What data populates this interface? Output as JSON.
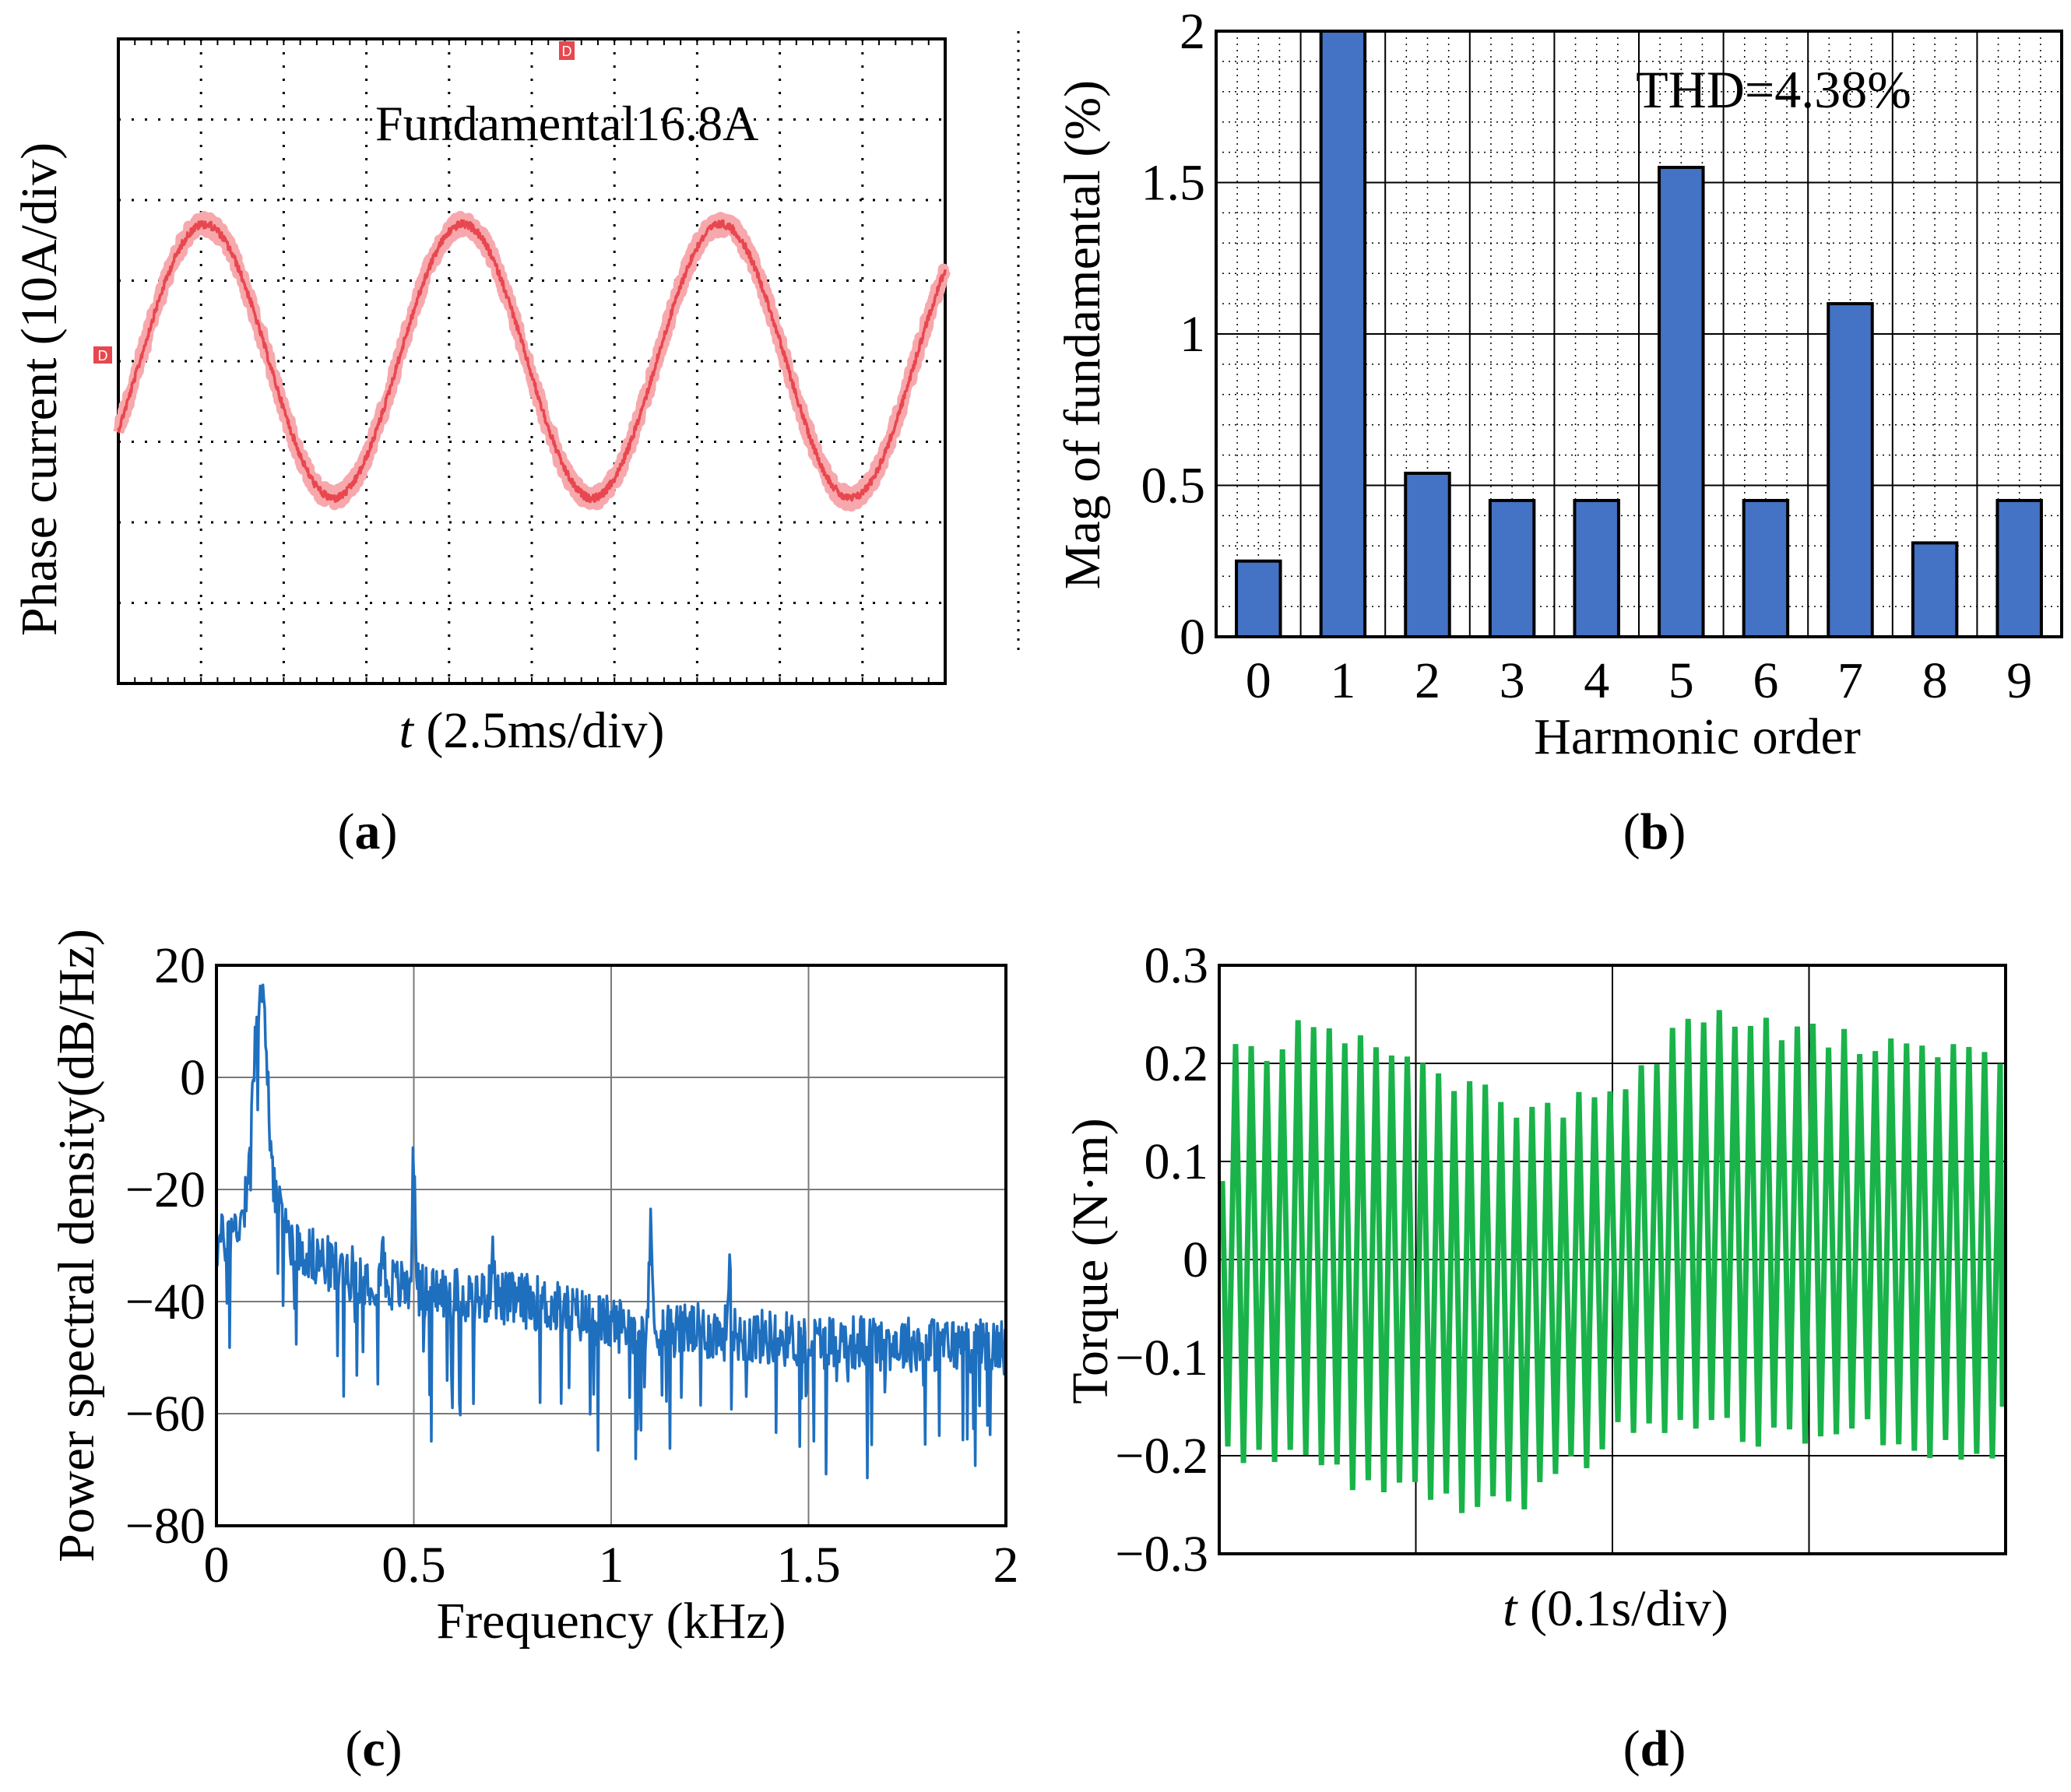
{
  "panel_labels": {
    "a": "a",
    "b": "b",
    "c": "c",
    "d": "d"
  },
  "chart_data": [
    {
      "id": "a",
      "type": "line",
      "title": "",
      "xlabel_italic": "t",
      "xlabel_rest": " (2.5ms/div)",
      "ylabel": "Phase current (10A/div)",
      "annotation": "Fundamental16.8A",
      "marker": "D",
      "divisions": {
        "x": 10,
        "y": 8
      },
      "waveform": {
        "periods": 3.2,
        "amplitude_div": 1.7,
        "dc_offset_div": 0,
        "phase_deg": -30,
        "noise": "high-frequency ripple"
      },
      "colors": {
        "trace": "#e8474f",
        "trace_light": "#f7a8ac",
        "grid": "#000000"
      }
    },
    {
      "id": "b",
      "type": "bar",
      "annotation": "THD=4.38%",
      "xlabel": "Harmonic order",
      "ylabel": "Mag of fundamental (%)",
      "categories": [
        "0",
        "1",
        "2",
        "3",
        "4",
        "5",
        "6",
        "7",
        "8",
        "9"
      ],
      "values": [
        0.25,
        2.0,
        0.54,
        0.45,
        0.45,
        1.55,
        0.45,
        1.1,
        0.31,
        0.45
      ],
      "ylim": [
        0,
        2
      ],
      "yticks": [
        0,
        0.5,
        1,
        1.5,
        2
      ],
      "ytick_labels": [
        "0",
        "0.5",
        "1",
        "1.5",
        "2"
      ],
      "grid": true,
      "colors": {
        "bar": "#4472c4"
      }
    },
    {
      "id": "c",
      "type": "line",
      "xlabel": "Frequency (kHz)",
      "ylabel": "Power spectral density(dB/Hz)",
      "xlim": [
        0,
        2
      ],
      "ylim": [
        -80,
        20
      ],
      "xticks": [
        0,
        0.5,
        1,
        1.5,
        2
      ],
      "xtick_labels": [
        "0",
        "0.5",
        "1",
        "1.5",
        "2"
      ],
      "yticks": [
        20,
        0,
        -20,
        -40,
        -60,
        -80
      ],
      "ytick_labels": [
        "20",
        "0",
        "−20",
        "−40",
        "−60",
        "−80"
      ],
      "grid": true,
      "baseline_points": [
        {
          "f": 0.0,
          "db": -30
        },
        {
          "f": 0.08,
          "db": -25
        },
        {
          "f": 0.12,
          "db": -20
        },
        {
          "f": 0.2,
          "db": -30
        },
        {
          "f": 0.3,
          "db": -34
        },
        {
          "f": 0.5,
          "db": -38
        },
        {
          "f": 0.8,
          "db": -40
        },
        {
          "f": 1.0,
          "db": -44
        },
        {
          "f": 1.5,
          "db": -47
        },
        {
          "f": 2.0,
          "db": -48
        }
      ],
      "peaks": [
        {
          "f": 0.11,
          "db": 15
        },
        {
          "f": 0.5,
          "db": -14
        },
        {
          "f": 0.7,
          "db": -29
        },
        {
          "f": 1.1,
          "db": -28
        },
        {
          "f": 1.3,
          "db": -33
        },
        {
          "f": 0.42,
          "db": -30
        }
      ],
      "colors": {
        "trace": "#1f6fbf"
      }
    },
    {
      "id": "d",
      "type": "line",
      "xlabel_italic": "t",
      "xlabel_rest": " (0.1s/div)",
      "ylabel": "Torque (N·m)",
      "ylim": [
        -0.3,
        0.3
      ],
      "yticks": [
        0.3,
        0.2,
        0.1,
        0,
        -0.1,
        -0.2,
        -0.3
      ],
      "ytick_labels": [
        "0.3",
        "0.2",
        "0.1",
        "0",
        "−0.1",
        "−0.2",
        "−0.3"
      ],
      "x_divisions": 4,
      "cycles": 50,
      "envelope": {
        "max": [
          0.2,
          0.23,
          0.21,
          0.18,
          0.15,
          0.17,
          0.24,
          0.24,
          0.22,
          0.22,
          0.21
        ],
        "min": [
          -0.2,
          -0.2,
          -0.23,
          -0.25,
          -0.24,
          -0.18,
          -0.17,
          -0.18,
          -0.17,
          -0.19,
          -0.22
        ]
      },
      "colors": {
        "trace": "#19b34a"
      }
    }
  ]
}
